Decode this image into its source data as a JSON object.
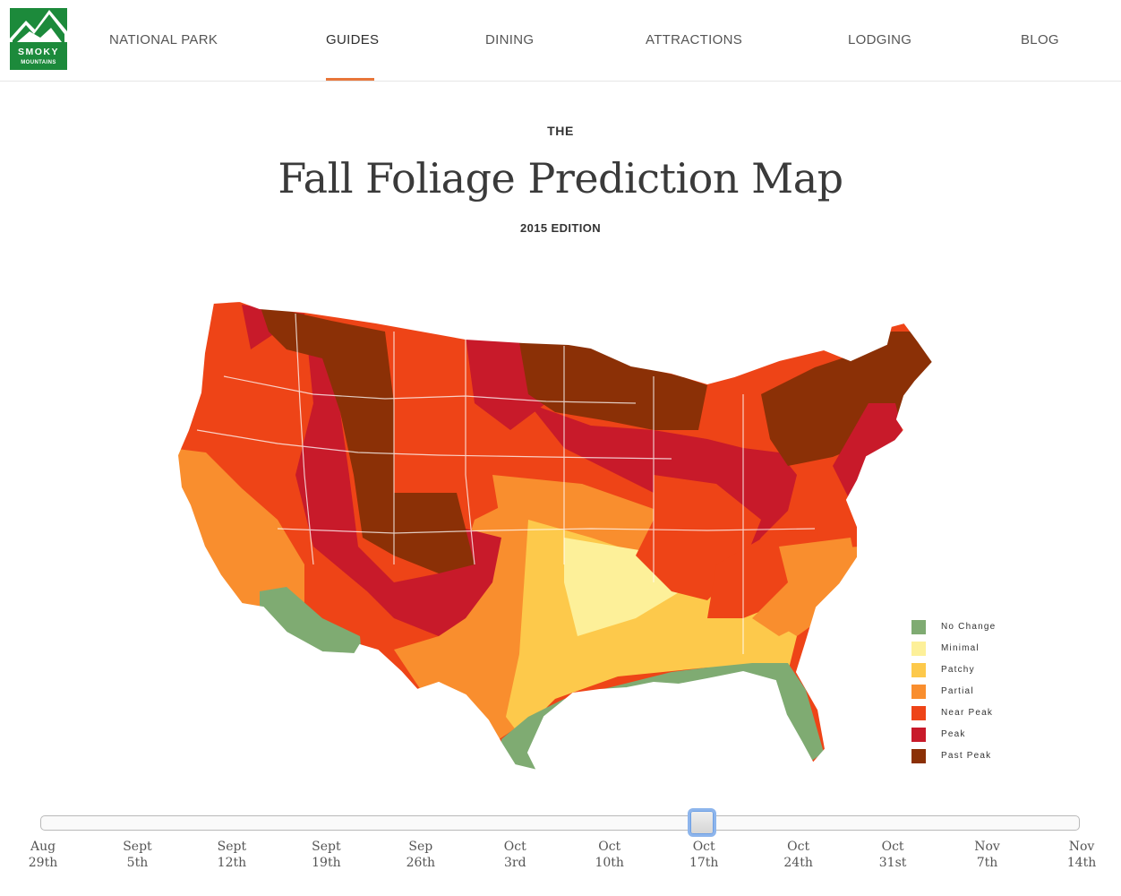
{
  "logo": {
    "line1": "SMOKY",
    "line2": "MOUNTAINS",
    "colors": {
      "green": "#1c8a3b",
      "white": "#ffffff"
    }
  },
  "nav": [
    {
      "label": "NATIONAL PARK",
      "active": false
    },
    {
      "label": "GUIDES",
      "active": true
    },
    {
      "label": "DINING",
      "active": false
    },
    {
      "label": "ATTRACTIONS",
      "active": false
    },
    {
      "label": "LODGING",
      "active": false
    },
    {
      "label": "BLOG",
      "active": false
    }
  ],
  "title": {
    "the": "THE",
    "main": "Fall Foliage Prediction Map",
    "edition": "2015 EDITION"
  },
  "legend": [
    {
      "label": "No Change",
      "color": "#7fab72"
    },
    {
      "label": "Minimal",
      "color": "#fdf099"
    },
    {
      "label": "Patchy",
      "color": "#fdc94b"
    },
    {
      "label": "Partial",
      "color": "#f98e2e"
    },
    {
      "label": "Near Peak",
      "color": "#ee4417"
    },
    {
      "label": "Peak",
      "color": "#c81a2a"
    },
    {
      "label": "Past Peak",
      "color": "#8b3006"
    }
  ],
  "slider": {
    "selected_index": 7,
    "dates": [
      {
        "month": "Aug",
        "day": "29th"
      },
      {
        "month": "Sept",
        "day": "5th"
      },
      {
        "month": "Sept",
        "day": "12th"
      },
      {
        "month": "Sept",
        "day": "19th"
      },
      {
        "month": "Sep",
        "day": "26th"
      },
      {
        "month": "Oct",
        "day": "3rd"
      },
      {
        "month": "Oct",
        "day": "10th"
      },
      {
        "month": "Oct",
        "day": "17th"
      },
      {
        "month": "Oct",
        "day": "24th"
      },
      {
        "month": "Oct",
        "day": "31st"
      },
      {
        "month": "Nov",
        "day": "7th"
      },
      {
        "month": "Nov",
        "day": "14th"
      }
    ]
  }
}
